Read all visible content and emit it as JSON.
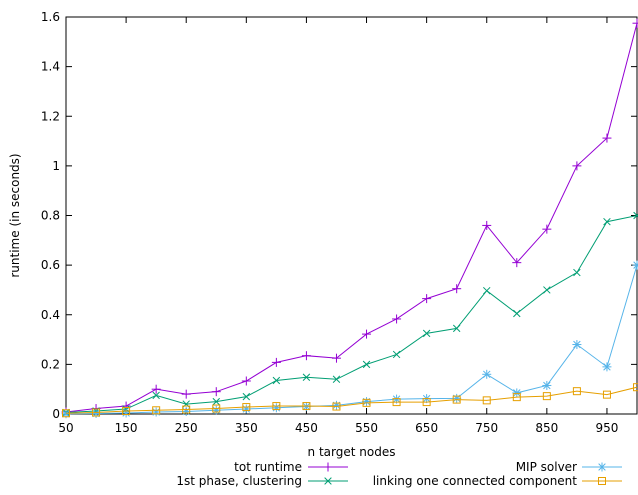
{
  "chart_data": {
    "type": "line",
    "xlabel": "n target nodes",
    "ylabel": "runtime (in seconds)",
    "xlim": [
      50,
      1000
    ],
    "ylim": [
      0,
      1.6
    ],
    "x_ticks": [
      "50",
      "150",
      "250",
      "350",
      "450",
      "550",
      "650",
      "750",
      "850",
      "950"
    ],
    "y_ticks": [
      "0",
      "0.2",
      "0.4",
      "0.6",
      "0.8",
      "1",
      "1.2",
      "1.4",
      "1.6"
    ],
    "grid": false,
    "legend_position": "bottom",
    "x": [
      50,
      100,
      150,
      200,
      250,
      300,
      350,
      400,
      450,
      500,
      550,
      600,
      650,
      700,
      750,
      800,
      850,
      900,
      950,
      1000
    ],
    "series": [
      {
        "name": "tot runtime",
        "color": "#9400d3",
        "marker": "plus",
        "values": [
          0.008,
          0.022,
          0.032,
          0.1,
          0.08,
          0.09,
          0.133,
          0.208,
          0.235,
          0.225,
          0.322,
          0.383,
          0.465,
          0.505,
          0.76,
          0.61,
          0.745,
          1.0,
          1.112,
          1.575
        ]
      },
      {
        "name": "1st phase, clustering",
        "color": "#009e73",
        "marker": "x",
        "values": [
          0.006,
          0.012,
          0.02,
          0.075,
          0.04,
          0.05,
          0.07,
          0.135,
          0.148,
          0.14,
          0.2,
          0.24,
          0.325,
          0.345,
          0.497,
          0.405,
          0.5,
          0.57,
          0.775,
          0.8
        ]
      },
      {
        "name": "MIP solver",
        "color": "#56b4e9",
        "marker": "star",
        "values": [
          0.001,
          0.002,
          0.004,
          0.008,
          0.01,
          0.015,
          0.02,
          0.025,
          0.03,
          0.035,
          0.05,
          0.06,
          0.062,
          0.063,
          0.16,
          0.085,
          0.115,
          0.28,
          0.19,
          0.6
        ]
      },
      {
        "name": "linking one connected component",
        "color": "#e69f00",
        "marker": "square",
        "values": [
          0.003,
          0.006,
          0.012,
          0.015,
          0.018,
          0.022,
          0.028,
          0.032,
          0.032,
          0.03,
          0.045,
          0.048,
          0.048,
          0.058,
          0.055,
          0.068,
          0.072,
          0.092,
          0.078,
          0.108
        ]
      }
    ]
  }
}
